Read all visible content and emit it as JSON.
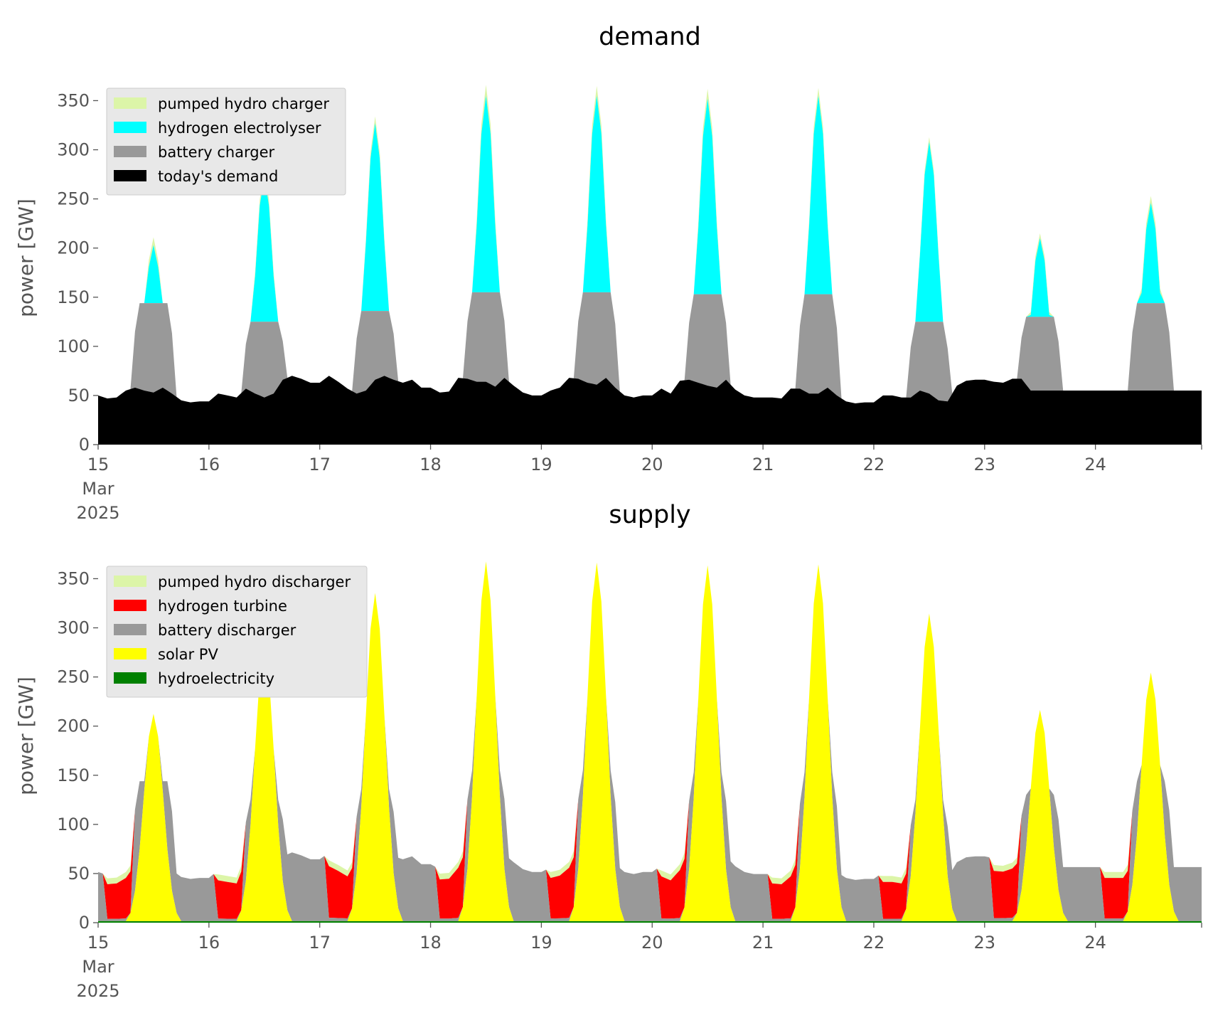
{
  "colors": {
    "pumped_hydro": "#dcf5a8",
    "hydrogen_electrolyser": "#00ffff",
    "battery": "#999999",
    "demand": "#000000",
    "hydrogen_turbine": "#ff0000",
    "solar_pv": "#ffff00",
    "hydroelectricity": "#008000",
    "legend_bg": "#e8e8e8"
  },
  "chart_data": [
    {
      "type": "area",
      "stacked": true,
      "title": "demand",
      "ylabel": "power [GW]",
      "xlabel": "",
      "ylim": [
        0,
        380
      ],
      "y_ticks": [
        0,
        50,
        100,
        150,
        200,
        250,
        300,
        350
      ],
      "x_range": [
        "2025-03-15T00:00",
        "2025-03-24T23:00"
      ],
      "x_ticks": [
        "15",
        "16",
        "17",
        "18",
        "19",
        "20",
        "21",
        "22",
        "23",
        "24"
      ],
      "x_tick_sublabel": [
        "Mar",
        "2025"
      ],
      "grid": false,
      "legend_position": "top-left",
      "hour_step": 2,
      "daily_peak_hour": 12,
      "series": [
        {
          "name": "today's demand",
          "color": "demand",
          "day_values": [
            [
              50,
              47,
              48,
              55,
              58,
              55,
              53,
              58,
              52,
              45,
              43,
              44
            ],
            [
              44,
              52,
              50,
              48,
              57,
              52,
              48,
              52,
              66,
              70,
              67,
              63
            ],
            [
              63,
              70,
              64,
              57,
              52,
              55,
              66,
              70,
              66,
              63,
              66,
              58
            ],
            [
              58,
              53,
              54,
              68,
              67,
              64,
              64,
              59,
              68,
              60,
              53,
              50
            ],
            [
              50,
              55,
              58,
              68,
              67,
              63,
              61,
              68,
              58,
              50,
              48,
              50
            ],
            [
              50,
              57,
              52,
              65,
              66,
              63,
              60,
              58,
              66,
              56,
              50,
              48
            ],
            [
              48,
              48,
              47,
              57,
              57,
              52,
              52,
              58,
              50,
              44,
              42,
              43
            ],
            [
              43,
              50,
              50,
              48,
              48,
              55,
              52,
              45,
              44,
              60,
              65,
              66
            ],
            [
              66,
              64,
              63,
              67,
              67,
              55,
              55,
              55,
              55,
              55,
              55,
              55
            ],
            [
              55,
              55,
              55,
              55,
              55,
              55,
              55,
              55,
              55,
              55,
              55,
              55
            ]
          ]
        },
        {
          "name": "battery charger",
          "color": "battery",
          "day_peaks": [
            144,
            125,
            136,
            155,
            155,
            153,
            153,
            125,
            130,
            144
          ]
        },
        {
          "name": "hydrogen electrolyser",
          "color": "hydrogen_electrolyser",
          "day_peaks": [
            203,
            273,
            327,
            355,
            355,
            352,
            355,
            308,
            210,
            246
          ]
        },
        {
          "name": "pumped hydro charger",
          "color": "pumped_hydro",
          "day_peaks": [
            211,
            280,
            334,
            366,
            365,
            362,
            363,
            313,
            215,
            253
          ]
        }
      ]
    },
    {
      "type": "area",
      "stacked": true,
      "title": "supply",
      "ylabel": "power [GW]",
      "xlabel": "",
      "ylim": [
        0,
        380
      ],
      "y_ticks": [
        0,
        50,
        100,
        150,
        200,
        250,
        300,
        350
      ],
      "x_range": [
        "2025-03-15T00:00",
        "2025-03-24T23:00"
      ],
      "x_ticks": [
        "15",
        "16",
        "17",
        "18",
        "19",
        "20",
        "21",
        "22",
        "23",
        "24"
      ],
      "x_tick_sublabel": [
        "Mar",
        "2025"
      ],
      "grid": false,
      "legend_position": "top-left",
      "series": [
        {
          "name": "hydroelectricity",
          "color": "hydroelectricity",
          "approx_level": 1
        },
        {
          "name": "solar PV",
          "color": "solar_pv",
          "day_peaks": [
            211,
            280,
            334,
            366,
            365,
            362,
            363,
            313,
            215,
            253
          ]
        },
        {
          "name": "battery discharger",
          "color": "battery",
          "approx_level": 55
        },
        {
          "name": "hydrogen turbine",
          "color": "hydrogen_turbine",
          "approx_level": 45
        },
        {
          "name": "pumped hydro discharger",
          "color": "pumped_hydro",
          "approx_level": 50
        }
      ]
    }
  ]
}
